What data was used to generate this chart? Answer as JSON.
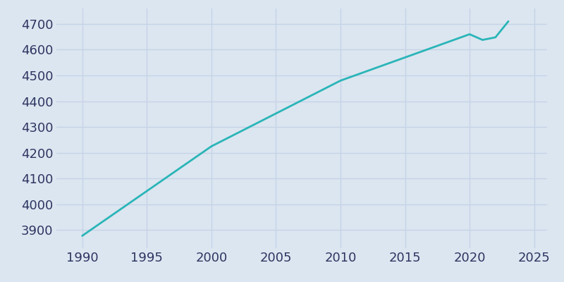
{
  "years": [
    1990,
    2000,
    2010,
    2020,
    2021,
    2022,
    2023
  ],
  "population": [
    3878,
    4225,
    4480,
    4660,
    4638,
    4648,
    4710
  ],
  "line_color": "#2ab5b8",
  "background_color": "#dce6f0",
  "plot_bg_color": "#dce6f0",
  "grid_color": "#c5d3e8",
  "tick_label_color": "#2d3561",
  "xlim": [
    1988,
    2026
  ],
  "ylim": [
    3830,
    4760
  ],
  "xticks": [
    1990,
    1995,
    2000,
    2005,
    2010,
    2015,
    2020,
    2025
  ],
  "yticks": [
    3900,
    4000,
    4100,
    4200,
    4300,
    4400,
    4500,
    4600,
    4700
  ],
  "linewidth": 2.0,
  "figsize": [
    8.0,
    4.0
  ],
  "dpi": 100,
  "tick_labelsize": 13
}
